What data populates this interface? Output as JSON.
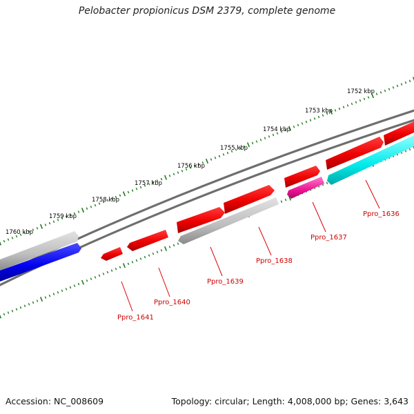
{
  "title": "Pelobacter propionicus DSM 2379, complete genome",
  "footer": {
    "accession": "Accession: NC_008609",
    "summary": "Topology: circular; Length: 4,008,000 bp; Genes: 3,643"
  },
  "colors": {
    "backbone": "#6e6e6e",
    "tick": "#1f7a1f",
    "kbp_label": "#000000",
    "gene_label": "#cc0000",
    "leader": "#dd0000"
  },
  "kbp_labels": [
    "1752 kbp",
    "1753 kbp",
    "1754 kbp",
    "1755 kbp",
    "1756 kbp",
    "1757 kbp",
    "1758 kbp",
    "1759 kbp",
    "1760 kbp"
  ],
  "genes": [
    {
      "label": "",
      "color": "red",
      "orientation": "forward"
    },
    {
      "label": "",
      "color": "red",
      "orientation": "forward"
    },
    {
      "label": "",
      "color": "red",
      "orientation": "forward"
    },
    {
      "label": "",
      "color": "red",
      "orientation": "forward"
    },
    {
      "label": "",
      "color": "red",
      "orientation": "forward"
    },
    {
      "label": "",
      "color": "red",
      "orientation": "reverse"
    },
    {
      "label": "",
      "color": "red",
      "orientation": "reverse"
    },
    {
      "label": "",
      "color": "gray",
      "orientation": "forward"
    },
    {
      "label": "",
      "color": "blue",
      "orientation": "forward"
    }
  ],
  "feature_labels": [
    {
      "text": "Ppro_1636",
      "color": "cyan"
    },
    {
      "text": "Ppro_1637",
      "color": "magenta"
    },
    {
      "text": "Ppro_1638",
      "color": "gray"
    },
    {
      "text": "Ppro_1639",
      "color": "red"
    },
    {
      "text": "Ppro_1640",
      "color": "red"
    },
    {
      "text": "Ppro_1641",
      "color": "red"
    }
  ]
}
